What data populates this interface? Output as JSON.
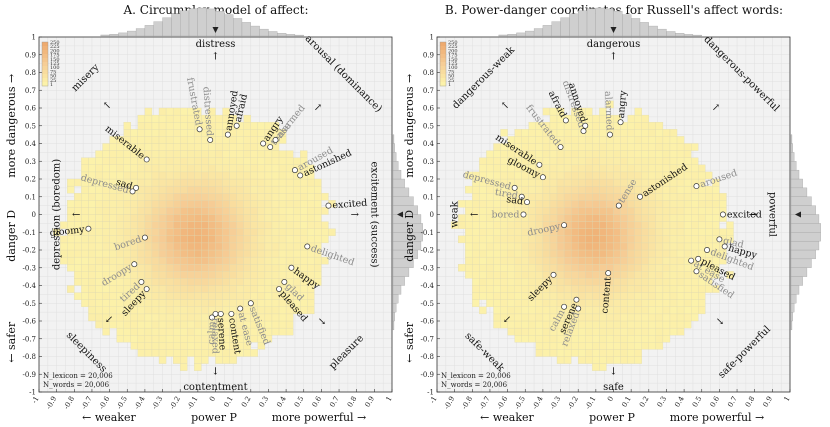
{
  "chart_data": [
    {
      "type": "scatter",
      "title": "A. Circumplex model of affect:",
      "xlabel": {
        "left": "← weaker",
        "mid": "power P",
        "right": "more powerful →"
      },
      "ylabel": {
        "low": "← safer",
        "mid": "danger D",
        "high": "more dangerous →"
      },
      "xlim": [
        -1,
        1
      ],
      "ylim": [
        -1,
        1
      ],
      "xticks": [
        "-1",
        "-0.9",
        "-0.8",
        "-0.7",
        "-0.6",
        "-0.5",
        "-0.4",
        "-0.3",
        "-0.2",
        "-0.1",
        "0",
        "0.1",
        "0.2",
        "0.3",
        "0.4",
        "0.5",
        "0.6",
        "0.7",
        "0.8",
        "0.9",
        "1"
      ],
      "yticks": [
        "-1",
        "-0.9",
        "-0.8",
        "-0.7",
        "-0.6",
        "-0.5",
        "-0.4",
        "-0.3",
        "-0.2",
        "-0.1",
        "0",
        "0.1",
        "0.2",
        "0.3",
        "0.4",
        "0.5",
        "0.6",
        "0.7",
        "0.8",
        "0.9",
        "1"
      ],
      "colorbar_ticks": [
        "250",
        "225",
        "200",
        "175",
        "150",
        "125",
        "100",
        "75",
        "50",
        "25",
        "1"
      ],
      "n_lines": [
        "N_lexicon = 20,006",
        "N_words = 20,006"
      ],
      "directions": [
        {
          "label": "distress",
          "x": 0,
          "y": 0.93,
          "arrow": "up",
          "rotate": 0
        },
        {
          "label": "contentment",
          "x": 0,
          "y": -0.93,
          "arrow": "down",
          "rotate": 0
        },
        {
          "label": "depression (boredom)",
          "x": -0.88,
          "y": 0,
          "arrow": "left",
          "rotate": -90
        },
        {
          "label": "excitement (success)",
          "x": 0.88,
          "y": 0,
          "arrow": "right",
          "rotate": 90
        },
        {
          "label": "misery",
          "x": -0.66,
          "y": 0.66,
          "arrow": "ul",
          "rotate": -45
        },
        {
          "label": "arousal (dominance)",
          "x": 0.66,
          "y": 0.66,
          "arrow": "ur",
          "rotate": 45
        },
        {
          "label": "sleepiness",
          "x": -0.66,
          "y": -0.66,
          "arrow": "dl",
          "rotate": 45
        },
        {
          "label": "pleasure",
          "x": 0.66,
          "y": -0.66,
          "arrow": "dr",
          "rotate": -45
        }
      ],
      "words": [
        {
          "w": "distressed",
          "x": -0.03,
          "y": 0.42,
          "g": true
        },
        {
          "w": "frustrated",
          "x": -0.09,
          "y": 0.48,
          "g": true
        },
        {
          "w": "annoyed",
          "x": 0.07,
          "y": 0.45,
          "g": false
        },
        {
          "w": "afraid",
          "x": 0.12,
          "y": 0.5,
          "g": false
        },
        {
          "w": "angry",
          "x": 0.27,
          "y": 0.4,
          "g": false
        },
        {
          "w": "tense",
          "x": 0.31,
          "y": 0.38,
          "g": true
        },
        {
          "w": "alarmed",
          "x": 0.34,
          "y": 0.42,
          "g": true
        },
        {
          "w": "aroused",
          "x": 0.45,
          "y": 0.25,
          "g": true
        },
        {
          "w": "astonished",
          "x": 0.48,
          "y": 0.22,
          "g": false
        },
        {
          "w": "excited",
          "x": 0.64,
          "y": 0.05,
          "g": false
        },
        {
          "w": "miserable",
          "x": -0.39,
          "y": 0.31,
          "g": false
        },
        {
          "w": "depressed",
          "x": -0.47,
          "y": 0.13,
          "g": true
        },
        {
          "w": "sad",
          "x": -0.45,
          "y": 0.15,
          "g": false
        },
        {
          "w": "gloomy",
          "x": -0.72,
          "y": -0.08,
          "g": false
        },
        {
          "w": "bored",
          "x": -0.4,
          "y": -0.13,
          "g": true
        },
        {
          "w": "droopy",
          "x": -0.46,
          "y": -0.28,
          "g": true
        },
        {
          "w": "tired",
          "x": -0.42,
          "y": -0.38,
          "g": true
        },
        {
          "w": "sleepy",
          "x": -0.39,
          "y": -0.42,
          "g": false
        },
        {
          "w": "calm",
          "x": -0.02,
          "y": -0.58,
          "g": true
        },
        {
          "w": "relaxed",
          "x": 0.0,
          "y": -0.56,
          "g": true
        },
        {
          "w": "serene",
          "x": 0.03,
          "y": -0.56,
          "g": false
        },
        {
          "w": "content",
          "x": 0.09,
          "y": -0.56,
          "g": false
        },
        {
          "w": "at ease",
          "x": 0.14,
          "y": -0.53,
          "g": true
        },
        {
          "w": "satisfied",
          "x": 0.2,
          "y": -0.5,
          "g": true
        },
        {
          "w": "pleased",
          "x": 0.36,
          "y": -0.42,
          "g": false
        },
        {
          "w": "glad",
          "x": 0.39,
          "y": -0.38,
          "g": true
        },
        {
          "w": "happy",
          "x": 0.43,
          "y": -0.3,
          "g": false
        },
        {
          "w": "delighted",
          "x": 0.52,
          "y": -0.18,
          "g": true
        }
      ]
    },
    {
      "type": "scatter",
      "title": "B. Power-danger coordinates for Russell's affect words:",
      "xlabel": {
        "left": "← weaker",
        "mid": "power P",
        "right": "more powerful →"
      },
      "ylabel": {
        "low": "← safer",
        "mid": "danger D",
        "high": "more dangerous →"
      },
      "xlim": [
        -1,
        1
      ],
      "ylim": [
        -1,
        1
      ],
      "xticks": [
        "-1",
        "-0.9",
        "-0.8",
        "-0.7",
        "-0.6",
        "-0.5",
        "-0.4",
        "-0.3",
        "-0.2",
        "-0.1",
        "0",
        "0.1",
        "0.2",
        "0.3",
        "0.4",
        "0.5",
        "0.6",
        "0.7",
        "0.8",
        "0.9",
        "1"
      ],
      "yticks": [
        "-1",
        "-0.9",
        "-0.8",
        "-0.7",
        "-0.6",
        "-0.5",
        "-0.4",
        "-0.3",
        "-0.2",
        "-0.1",
        "0",
        "0.1",
        "0.2",
        "0.3",
        "0.4",
        "0.5",
        "0.6",
        "0.7",
        "0.8",
        "0.9",
        "1"
      ],
      "colorbar_ticks": [
        "250",
        "225",
        "200",
        "175",
        "150",
        "125",
        "100",
        "75",
        "50",
        "25",
        "1"
      ],
      "n_lines": [
        "N_lexicon = 20,006",
        "N_words = 20,006"
      ],
      "directions": [
        {
          "label": "dangerous",
          "x": 0,
          "y": 0.93,
          "arrow": "up",
          "rotate": 0
        },
        {
          "label": "safe",
          "x": 0,
          "y": -0.93,
          "arrow": "down",
          "rotate": 0
        },
        {
          "label": "weak",
          "x": -0.88,
          "y": 0,
          "arrow": "left",
          "rotate": -90
        },
        {
          "label": "powerful",
          "x": 0.88,
          "y": 0,
          "arrow": "right",
          "rotate": 90
        },
        {
          "label": "dangerous-weak",
          "x": -0.66,
          "y": 0.66,
          "arrow": "ul",
          "rotate": -45
        },
        {
          "label": "dangerous-powerful",
          "x": 0.66,
          "y": 0.66,
          "arrow": "ur",
          "rotate": 45
        },
        {
          "label": "safe-weak",
          "x": -0.66,
          "y": -0.66,
          "arrow": "dl",
          "rotate": 45
        },
        {
          "label": "safe-powerful",
          "x": 0.66,
          "y": -0.66,
          "arrow": "dr",
          "rotate": -45
        }
      ],
      "words": [
        {
          "w": "frustrated",
          "x": -0.3,
          "y": 0.38,
          "g": true
        },
        {
          "w": "afraid",
          "x": -0.27,
          "y": 0.53,
          "g": false
        },
        {
          "w": "distressed",
          "x": -0.17,
          "y": 0.47,
          "g": true
        },
        {
          "w": "annoyed",
          "x": -0.16,
          "y": 0.5,
          "g": false
        },
        {
          "w": "alarmed",
          "x": -0.02,
          "y": 0.45,
          "g": true
        },
        {
          "w": "angry",
          "x": 0.04,
          "y": 0.52,
          "g": false
        },
        {
          "w": "tense",
          "x": 0.03,
          "y": 0.05,
          "g": true
        },
        {
          "w": "astonished",
          "x": 0.15,
          "y": 0.1,
          "g": false
        },
        {
          "w": "aroused",
          "x": 0.47,
          "y": 0.16,
          "g": true
        },
        {
          "w": "excited",
          "x": 0.62,
          "y": 0.0,
          "g": false
        },
        {
          "w": "miserable",
          "x": -0.42,
          "y": 0.28,
          "g": false
        },
        {
          "w": "gloomy",
          "x": -0.4,
          "y": 0.21,
          "g": false
        },
        {
          "w": "depressed",
          "x": -0.56,
          "y": 0.15,
          "g": true
        },
        {
          "w": "tired",
          "x": -0.52,
          "y": 0.1,
          "g": true
        },
        {
          "w": "sad",
          "x": -0.49,
          "y": 0.07,
          "g": false
        },
        {
          "w": "bored",
          "x": -0.51,
          "y": 0.0,
          "g": true
        },
        {
          "w": "droopy",
          "x": -0.28,
          "y": -0.06,
          "g": true
        },
        {
          "w": "sleepy",
          "x": -0.34,
          "y": -0.34,
          "g": false
        },
        {
          "w": "content",
          "x": -0.03,
          "y": -0.33,
          "g": false
        },
        {
          "w": "calm",
          "x": -0.28,
          "y": -0.52,
          "g": true
        },
        {
          "w": "serene",
          "x": -0.21,
          "y": -0.48,
          "g": false
        },
        {
          "w": "relaxed",
          "x": -0.2,
          "y": -0.53,
          "g": true
        },
        {
          "w": "glad",
          "x": 0.6,
          "y": -0.14,
          "g": true
        },
        {
          "w": "happy",
          "x": 0.63,
          "y": -0.18,
          "g": false
        },
        {
          "w": "delighted",
          "x": 0.53,
          "y": -0.2,
          "g": true
        },
        {
          "w": "at ease",
          "x": 0.44,
          "y": -0.26,
          "g": true
        },
        {
          "w": "pleased",
          "x": 0.48,
          "y": -0.25,
          "g": false
        },
        {
          "w": "satisfied",
          "x": 0.47,
          "y": -0.32,
          "g": true
        }
      ]
    }
  ]
}
